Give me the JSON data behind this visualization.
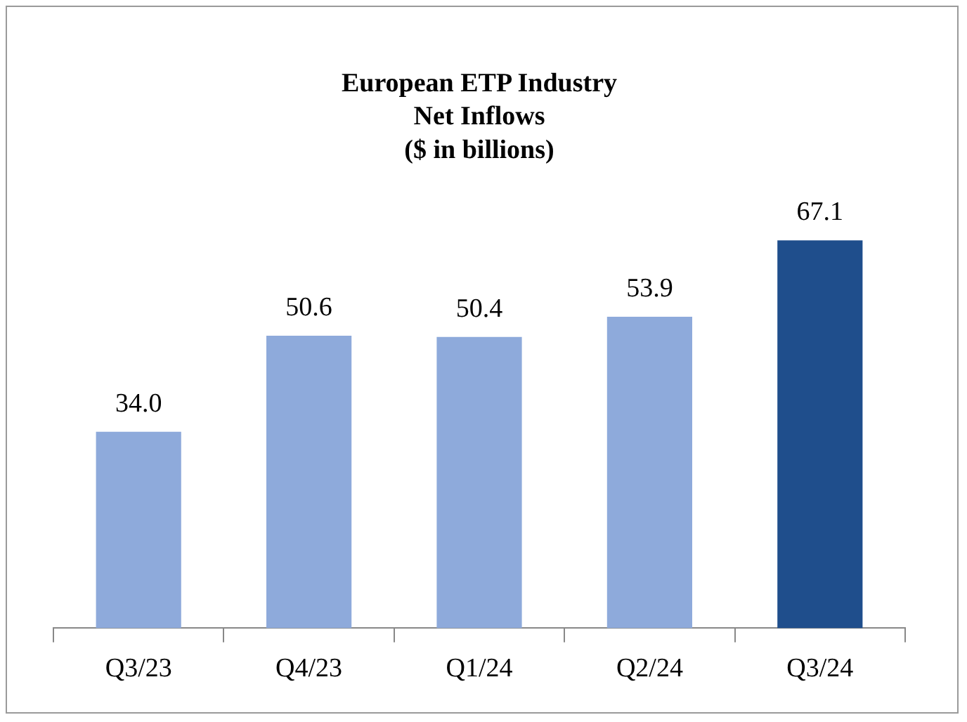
{
  "chart_data": {
    "type": "bar",
    "title": "European ETP Industry\nNet Inflows\n($ in billions)",
    "categories": [
      "Q3/23",
      "Q4/23",
      "Q1/24",
      "Q2/24",
      "Q3/24"
    ],
    "values": [
      34.0,
      50.6,
      50.4,
      53.9,
      67.1
    ],
    "value_labels": [
      "34.0",
      "50.6",
      "50.4",
      "53.9",
      "67.1"
    ],
    "colors": [
      "#8eaadb",
      "#8eaadb",
      "#8eaadb",
      "#8eaadb",
      "#1f4e8c"
    ],
    "grid": false,
    "legend": false,
    "tick_labels": "x"
  }
}
